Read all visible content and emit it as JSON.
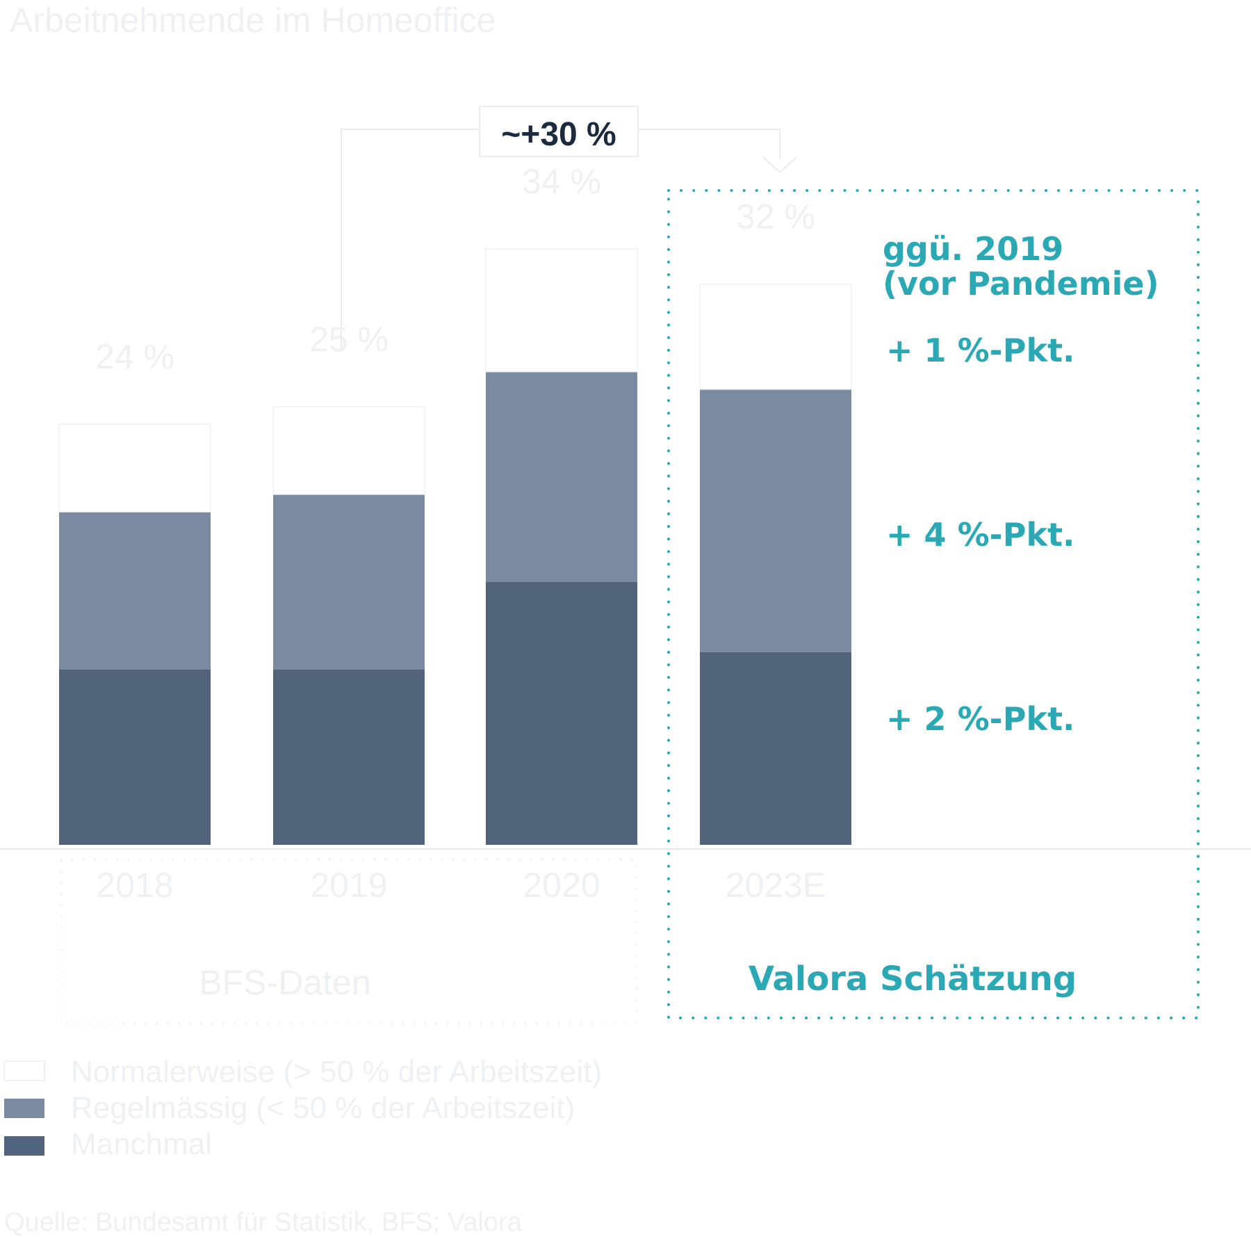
{
  "title": "Arbeitnehmende im Homeoffice",
  "annotation_growth": "~+30 %",
  "colors": {
    "normalerweise": "#ffffff",
    "regelmaessig": "#7a8aa1",
    "manchmal": "#51647c",
    "accent": "#2aa8b3",
    "dark_text": "#1b2a3c",
    "ghost_text": "#eef1f4"
  },
  "chart_data": {
    "type": "bar",
    "stacked": true,
    "categories": [
      "2018",
      "2019",
      "2020",
      "2023E"
    ],
    "totals_labels": [
      "24 %",
      "25 %",
      "34 %",
      "32 %"
    ],
    "totals": [
      24,
      25,
      34,
      32
    ],
    "series": [
      {
        "name": "Manchmal",
        "values": [
          10,
          10,
          15,
          11
        ]
      },
      {
        "name": "Regelmässig (< 50 % der Arbeitszeit)",
        "values": [
          9,
          10,
          12,
          15
        ]
      },
      {
        "name": "Normalerweise (> 50 % der Arbeitszeit)",
        "values": [
          5,
          5,
          7,
          6
        ]
      }
    ],
    "ylim": [
      0,
      36
    ]
  },
  "groups": {
    "bfs_label": "BFS-Daten",
    "valora_label": "Valora Schätzung"
  },
  "comparison": {
    "heading_line1": "ggü. 2019",
    "heading_line2": "(vor Pandemie)",
    "deltas": [
      "+ 1 %-Pkt.",
      "+ 4 %-Pkt.",
      "+ 2 %-Pkt."
    ]
  },
  "legend": [
    {
      "label": "Normalerweise (> 50 % der Arbeitszeit)"
    },
    {
      "label": "Regelmässig (< 50 % der Arbeitszeit)"
    },
    {
      "label": "Manchmal"
    }
  ],
  "source": "Quelle: Bundesamt für Statistik, BFS; Valora"
}
